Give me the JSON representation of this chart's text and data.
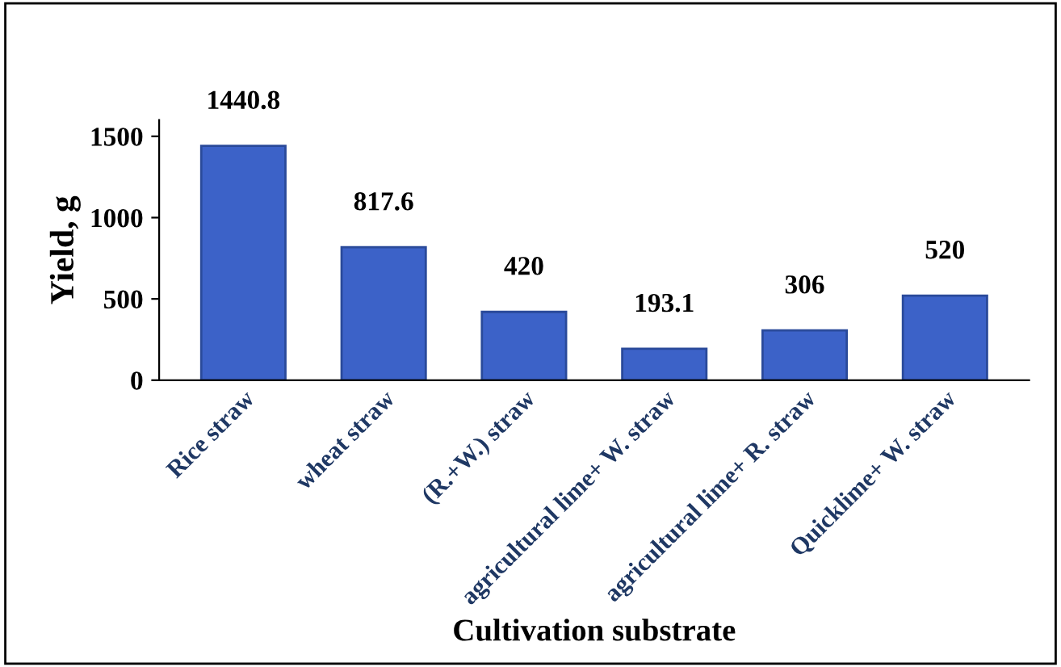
{
  "chart_data": {
    "type": "bar",
    "xlabel": "Cultivation substrate",
    "ylabel": "Yield, g",
    "categories": [
      "Rice straw",
      "wheat straw",
      "(R.+W.) straw",
      "agricultural lime+ W. straw",
      "agricultural lime+ R. straw",
      "Quicklime+ W. straw"
    ],
    "values": [
      1440.8,
      817.6,
      420,
      193.1,
      306,
      520
    ],
    "color": "#3c62c8",
    "ylim": [
      0,
      1600
    ],
    "yticks": [
      0,
      500,
      1000,
      1500
    ],
    "data_labels": true,
    "grid": false,
    "legend": false
  }
}
